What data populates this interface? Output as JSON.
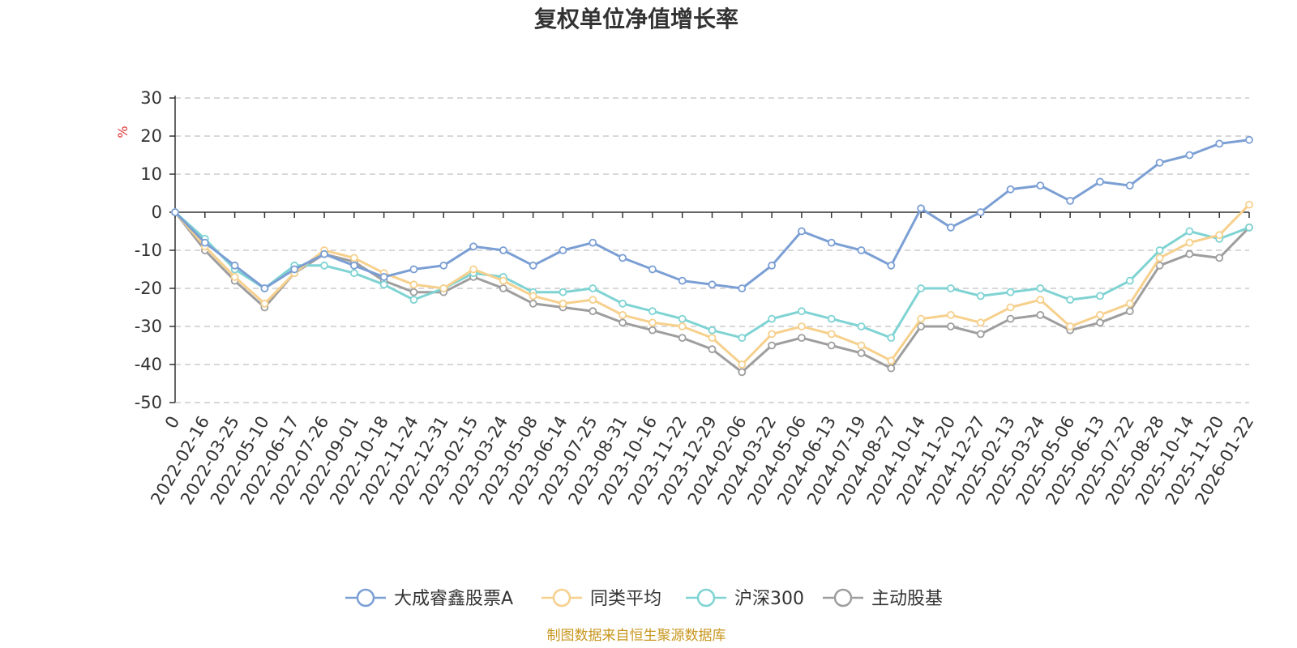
{
  "chart_data": {
    "type": "line",
    "title": "复权单位净值增长率",
    "ylabel": "%",
    "ylim": [
      -50,
      30
    ],
    "yticks": [
      30,
      20,
      10,
      0,
      -10,
      -20,
      -30,
      -40,
      -50
    ],
    "grid": true,
    "legend_position": "bottom",
    "source": "制图数据来自恒生聚源数据库",
    "unit_color": "#e03030",
    "source_color": "#c8961e",
    "x": [
      "0",
      "2022-02-16",
      "2022-03-25",
      "2022-05-10",
      "2022-06-17",
      "2022-07-26",
      "2022-09-01",
      "2022-10-18",
      "2022-11-24",
      "2022-12-31",
      "2023-02-15",
      "2023-03-24",
      "2023-05-08",
      "2023-06-14",
      "2023-07-25",
      "2023-08-31",
      "2023-10-16",
      "2023-11-22",
      "2023-12-29",
      "2024-02-06",
      "2024-03-22",
      "2024-05-06",
      "2024-06-13",
      "2024-07-19",
      "2024-08-27",
      "2024-10-14",
      "2024-11-20",
      "2024-12-27",
      "2025-02-13",
      "2025-03-24",
      "2025-05-06",
      "2025-06-13",
      "2025-07-22",
      "2025-08-28",
      "2025-10-14",
      "2025-11-20",
      "2026-01-22"
    ],
    "series": [
      {
        "name": "大成睿鑫股票A",
        "color": "#7b9fd4",
        "values": [
          0,
          -8,
          -14,
          -20,
          -15,
          -11,
          -14,
          -17,
          -15,
          -14,
          -9,
          -10,
          -14,
          -10,
          -8,
          -12,
          -15,
          -18,
          -19,
          -20,
          -14,
          -5,
          -8,
          -10,
          -14,
          1,
          -4,
          0,
          6,
          7,
          3,
          8,
          7,
          13,
          15,
          18,
          19
        ]
      },
      {
        "name": "同类平均",
        "color": "#f6d08c",
        "values": [
          0,
          -9,
          -17,
          -24,
          -16,
          -10,
          -12,
          -16,
          -19,
          -20,
          -15,
          -18,
          -22,
          -24,
          -23,
          -27,
          -29,
          -30,
          -33,
          -40,
          -32,
          -30,
          -32,
          -35,
          -39,
          -28,
          -27,
          -29,
          -25,
          -23,
          -30,
          -27,
          -24,
          -12,
          -8,
          -6,
          2
        ]
      },
      {
        "name": "沪深300",
        "color": "#7fd3d3",
        "values": [
          0,
          -7,
          -15,
          -20,
          -14,
          -14,
          -16,
          -19,
          -23,
          -20,
          -16,
          -17,
          -21,
          -21,
          -20,
          -24,
          -26,
          -28,
          -31,
          -33,
          -28,
          -26,
          -28,
          -30,
          -33,
          -20,
          -20,
          -22,
          -21,
          -20,
          -23,
          -22,
          -18,
          -10,
          -5,
          -7,
          -4
        ]
      },
      {
        "name": "主动股基",
        "color": "#9e9e9e",
        "values": [
          0,
          -10,
          -18,
          -25,
          -16,
          -11,
          -13,
          -18,
          -21,
          -21,
          -17,
          -20,
          -24,
          -25,
          -26,
          -29,
          -31,
          -33,
          -36,
          -42,
          -35,
          -33,
          -35,
          -37,
          -41,
          -30,
          -30,
          -32,
          -28,
          -27,
          -31,
          -29,
          -26,
          -14,
          -11,
          -12,
          -4
        ]
      }
    ]
  }
}
